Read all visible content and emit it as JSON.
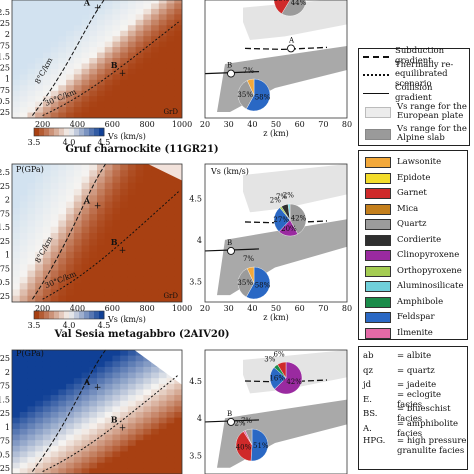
{
  "panels": [
    {
      "title": "",
      "pressure_label": "",
      "y_ticks": [
        "0.25",
        "0.5",
        "0.75",
        "1",
        "1.25",
        "1.5",
        "1.75",
        "2",
        "2.25",
        "2.5"
      ],
      "x_ticks": [
        "200",
        "400",
        "600",
        "800",
        "1000"
      ],
      "facies_labels": [
        "A",
        "B"
      ],
      "gradients": [
        "8°C/km",
        "30°C/km"
      ],
      "corner_label": "GrD",
      "colorbar": {
        "ticks": [
          "3.5",
          "4.0",
          "4.5"
        ],
        "label": "Vs (km/s)"
      },
      "vs_ticks": [],
      "vs_axis_label": "",
      "z_ticks": [
        "20",
        "30",
        "40",
        "50",
        "60",
        "70",
        "80"
      ],
      "z_label": "z (km)",
      "pies": [
        {
          "values": [
            44,
            28,
            3
          ],
          "labels": [
            "44%",
            "28%",
            "3%"
          ]
        },
        {
          "values": [
            58,
            35,
            7
          ],
          "labels": [
            "58%",
            "35%",
            "7%"
          ]
        }
      ],
      "scheme": "orange"
    },
    {
      "title": "Gruf charnockite (11GR21)",
      "pressure_label": "P(GPa)",
      "y_ticks": [
        "0.25",
        "0.5",
        "0.75",
        "1",
        "1.25",
        "1.5",
        "1.75",
        "2",
        "2.25",
        "2.5"
      ],
      "x_ticks": [
        "200",
        "400",
        "600",
        "800",
        "1000"
      ],
      "facies_labels": [
        "A",
        "B"
      ],
      "gradients": [
        "8°C/km",
        "30°C/km"
      ],
      "corner_label": "GrD",
      "colorbar": {
        "ticks": [
          "3.5",
          "4.0",
          "4.5"
        ],
        "label": "Vs (km/s)"
      },
      "vs_ticks": [
        "3.5",
        "4",
        "4.5"
      ],
      "vs_axis_label": "Vs (km/s)",
      "z_ticks": [
        "20",
        "30",
        "40",
        "50",
        "60",
        "70",
        "80"
      ],
      "z_label": "z (km)",
      "pies": [
        {
          "values": [
            42,
            20,
            27,
            2,
            7,
            2
          ],
          "labels": [
            "42%",
            "20%",
            "27%",
            "2%",
            "7%",
            "2%"
          ]
        },
        {
          "values": [
            58,
            35,
            7
          ],
          "labels": [
            "58%",
            "35%",
            "7%"
          ]
        }
      ],
      "scheme": "orange"
    },
    {
      "title": "Val Sesia metagabbro (2AIV20)",
      "pressure_label": "P(GPa)",
      "y_ticks": [
        "0.25",
        "0.5",
        "0.75",
        "1",
        "1.25",
        "1.5",
        "1.75",
        "2",
        "2.25"
      ],
      "x_ticks": [],
      "facies_labels": [
        "A",
        "B"
      ],
      "gradients": [],
      "corner_label": "",
      "colorbar": null,
      "vs_ticks": [
        "3.5",
        "4",
        "4.5"
      ],
      "vs_axis_label": "",
      "z_ticks": [],
      "z_label": "",
      "pies": [
        {
          "values": [
            42,
            16,
            3,
            6
          ],
          "labels": [
            "42%",
            "16%",
            "3%",
            "6%"
          ]
        },
        {
          "values": [
            51,
            40,
            2,
            7
          ],
          "labels": [
            "51%",
            "40%",
            "2%",
            "7%"
          ]
        }
      ],
      "scheme": "blue"
    }
  ],
  "gradient_legend": [
    {
      "label": "Subduction gradient",
      "style": "dashed"
    },
    {
      "label": "Thermally re-equilibrated scenario",
      "style": "dotted"
    },
    {
      "label": "Collision gradient",
      "style": "solid"
    },
    {
      "label": "Vs range for the European plate",
      "style": "light"
    },
    {
      "label": "Vs range for the Alpine slab",
      "style": "dark"
    }
  ],
  "minerals": [
    {
      "name": "Lawsonite",
      "color": "#f2a83a"
    },
    {
      "name": "Epidote",
      "color": "#f3dc2a"
    },
    {
      "name": "Garnet",
      "color": "#cf2a2a"
    },
    {
      "name": "Mica",
      "color": "#c47f1c"
    },
    {
      "name": "Quartz",
      "color": "#9b9b9b"
    },
    {
      "name": "Cordierite",
      "color": "#2f2f2f"
    },
    {
      "name": "Clinopyroxene",
      "color": "#9a2aa0"
    },
    {
      "name": "Orthopyroxene",
      "color": "#a4cc52"
    },
    {
      "name": "Aluminosilicate",
      "color": "#6fd0da"
    },
    {
      "name": "Amphibole",
      "color": "#1a8c4a"
    },
    {
      "name": "Feldspar",
      "color": "#2a68c4"
    },
    {
      "name": "Ilmenite",
      "color": "#e56aa7"
    }
  ],
  "abbreviations": [
    {
      "key": "ab",
      "value": "= albite"
    },
    {
      "key": "qz",
      "value": "= quartz"
    },
    {
      "key": "jd",
      "value": "= jadeite"
    },
    {
      "key": "E.",
      "value": "= eclogite facies"
    },
    {
      "key": "BS.",
      "value": "= blueschist facies"
    },
    {
      "key": "A.",
      "value": "= amphibolite facies"
    },
    {
      "key": "HPG.",
      "value": "= high pressure granulite facies"
    }
  ]
}
